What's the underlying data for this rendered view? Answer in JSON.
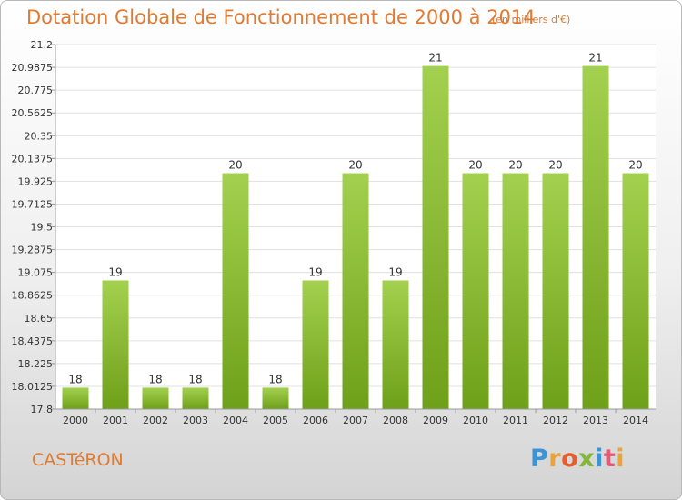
{
  "header": {
    "title": "Dotation Globale de Fonctionnement de 2000 à 2014",
    "unit": "(en milliers d'€)"
  },
  "commune": "CASTéRON",
  "logo": {
    "text": "Proxiti"
  },
  "colors": {
    "bar_light": "#a3d14f",
    "bar_dark": "#6fa019",
    "title": "#e07b33",
    "grid": "#e0e0e0",
    "axis": "#999999"
  },
  "chart_data": {
    "type": "bar",
    "title": "Dotation Globale de Fonctionnement de 2000 à 2014",
    "subtitle": "(en milliers d'€)",
    "xlabel": "",
    "ylabel": "",
    "categories": [
      "2000",
      "2001",
      "2002",
      "2003",
      "2004",
      "2005",
      "2006",
      "2007",
      "2008",
      "2009",
      "2010",
      "2011",
      "2012",
      "2013",
      "2014"
    ],
    "values": [
      18,
      19,
      18,
      18,
      20,
      18,
      19,
      20,
      19,
      21,
      20,
      20,
      20,
      21,
      20
    ],
    "data_labels": [
      "18",
      "19",
      "18",
      "18",
      "20",
      "18",
      "19",
      "20",
      "19",
      "21",
      "20",
      "20",
      "20",
      "21",
      "20"
    ],
    "ylim": [
      17.8,
      21.2
    ],
    "y_ticks": [
      17.8,
      18.0125,
      18.225,
      18.4375,
      18.65,
      18.8625,
      19.075,
      19.2875,
      19.5,
      19.7125,
      19.925,
      20.1375,
      20.35,
      20.5625,
      20.775,
      20.9875,
      21.2
    ],
    "y_tick_labels": [
      "17.8",
      "18.0125",
      "18.225",
      "18.4375",
      "18.65",
      "18.8625",
      "19.075",
      "19.2875",
      "19.5",
      "19.7125",
      "19.925",
      "20.1375",
      "20.35",
      "20.5625",
      "20.775",
      "20.9875",
      "21.2"
    ],
    "grid": true,
    "legend": "none"
  }
}
